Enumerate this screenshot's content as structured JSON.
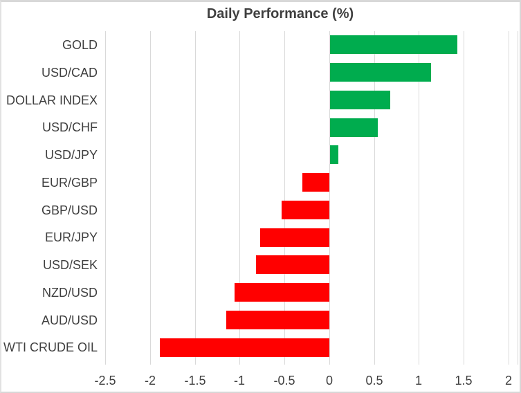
{
  "chart": {
    "frame_color": "#d8d8d8",
    "background": "#ffffff"
  },
  "chart_data": {
    "type": "bar",
    "orientation": "horizontal",
    "title": "Daily Performance (%)",
    "categories": [
      "GOLD",
      "USD/CAD",
      "DOLLAR INDEX",
      "USD/CHF",
      "USD/JPY",
      "EUR/GBP",
      "GBP/USD",
      "EUR/JPY",
      "USD/SEK",
      "NZD/USD",
      "AUD/USD",
      "WTI CRUDE OIL"
    ],
    "values": [
      1.42,
      1.13,
      0.67,
      0.53,
      0.09,
      -0.3,
      -0.53,
      -0.77,
      -0.82,
      -1.06,
      -1.15,
      -1.89
    ],
    "xlim": [
      -2.5,
      2.1
    ],
    "x_ticks": [
      -2.5,
      -2,
      -1.5,
      -1,
      -0.5,
      0,
      0.5,
      1,
      1.5,
      2
    ],
    "x_tick_labels": [
      "-2.5",
      "-2",
      "-1.5",
      "-1",
      "-0.5",
      "0",
      "0.5",
      "1",
      "1.5",
      "2"
    ],
    "xlabel": "",
    "ylabel": "",
    "grid": true,
    "legend": false,
    "positive_color": "#00ac4e",
    "negative_color": "#ff0000",
    "gridline_color": "#d9d9d9",
    "text_color": "#3f3f3f"
  }
}
